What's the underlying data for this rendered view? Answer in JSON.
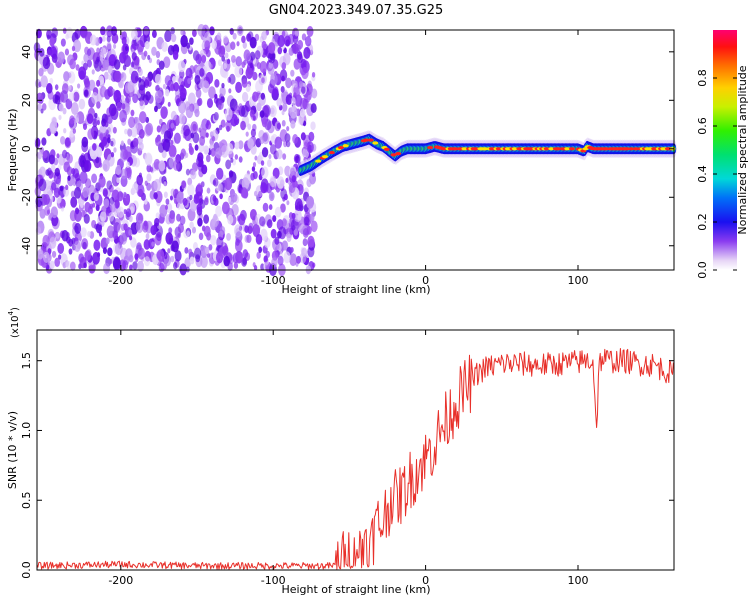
{
  "title": "GN04.2023.349.07.35.G25",
  "chart_data": [
    {
      "type": "heatmap",
      "xlabel": "Height of straight line (km)",
      "ylabel": "Frequency (Hz)",
      "xlim": [
        -255,
        163
      ],
      "ylim": [
        -50,
        49
      ],
      "xticks": [
        -200,
        -100,
        0,
        100
      ],
      "yticks": [
        -40,
        -20,
        0,
        20,
        40
      ],
      "noise_region_x": [
        -255,
        -73
      ],
      "signal_region_x": [
        -82,
        163
      ],
      "ridge": {
        "x": [
          -82,
          -75,
          -68,
          -60,
          -54,
          -48,
          -42,
          -37,
          -32,
          -28,
          -24,
          -20,
          -16,
          -12,
          -6,
          0,
          6,
          12,
          20,
          40,
          60,
          80,
          100,
          104,
          106,
          110,
          130,
          150,
          163
        ],
        "y": [
          -9,
          -7,
          -4,
          -1,
          1,
          2,
          3,
          4,
          2,
          1,
          -1,
          -3,
          -1,
          0,
          0,
          0,
          1,
          0,
          0,
          0,
          0,
          0,
          0,
          -1,
          1,
          0,
          0,
          0,
          0
        ]
      },
      "colorbar": {
        "label": "Normalized spectral amplitude",
        "range": [
          0.0,
          1.0
        ],
        "ticks": [
          0.0,
          0.2,
          0.4,
          0.6,
          0.8
        ],
        "tick_labels": [
          "0.0",
          "0.2",
          "0.4",
          "0.6",
          "0.8"
        ]
      }
    },
    {
      "type": "line",
      "xlabel": "Height of straight line (km)",
      "ylabel": "SNR (10 * v/v)",
      "y_multiplier": "(x10",
      "y_multiplier_exp": "4",
      "xlim": [
        -255,
        163
      ],
      "ylim": [
        0,
        1.72
      ],
      "xticks": [
        -200,
        -100,
        0,
        100
      ],
      "yticks": [
        0.0,
        0.5,
        1.0,
        1.5
      ],
      "ytick_labels": [
        "0.0",
        "0.5",
        "1.0",
        "1.5"
      ],
      "color": "#e8302a",
      "series": [
        {
          "name": "SNR",
          "x": [
            -255,
            -200,
            -150,
            -100,
            -80,
            -60,
            -57,
            -55,
            -52,
            -50,
            -47,
            -45,
            -42,
            -40,
            -37,
            -35,
            -32,
            -30,
            -27,
            -25,
            -22,
            -20,
            -15,
            -10,
            -5,
            0,
            5,
            10,
            15,
            20,
            25,
            30,
            35,
            40,
            50,
            60,
            70,
            80,
            90,
            100,
            105,
            110,
            112,
            114,
            116,
            120,
            130,
            140,
            150,
            163
          ],
          "y": [
            0.03,
            0.04,
            0.03,
            0.03,
            0.03,
            0.03,
            0.05,
            0.08,
            0.05,
            0.12,
            0.05,
            0.2,
            0.08,
            0.28,
            0.1,
            0.22,
            0.35,
            0.3,
            0.4,
            0.42,
            0.55,
            0.5,
            0.55,
            0.65,
            0.72,
            0.8,
            0.88,
            1.0,
            1.1,
            1.2,
            1.28,
            1.35,
            1.42,
            1.45,
            1.48,
            1.48,
            1.47,
            1.47,
            1.48,
            1.49,
            1.5,
            1.5,
            1.0,
            1.48,
            1.52,
            1.5,
            1.5,
            1.48,
            1.47,
            1.4
          ]
        }
      ]
    }
  ]
}
